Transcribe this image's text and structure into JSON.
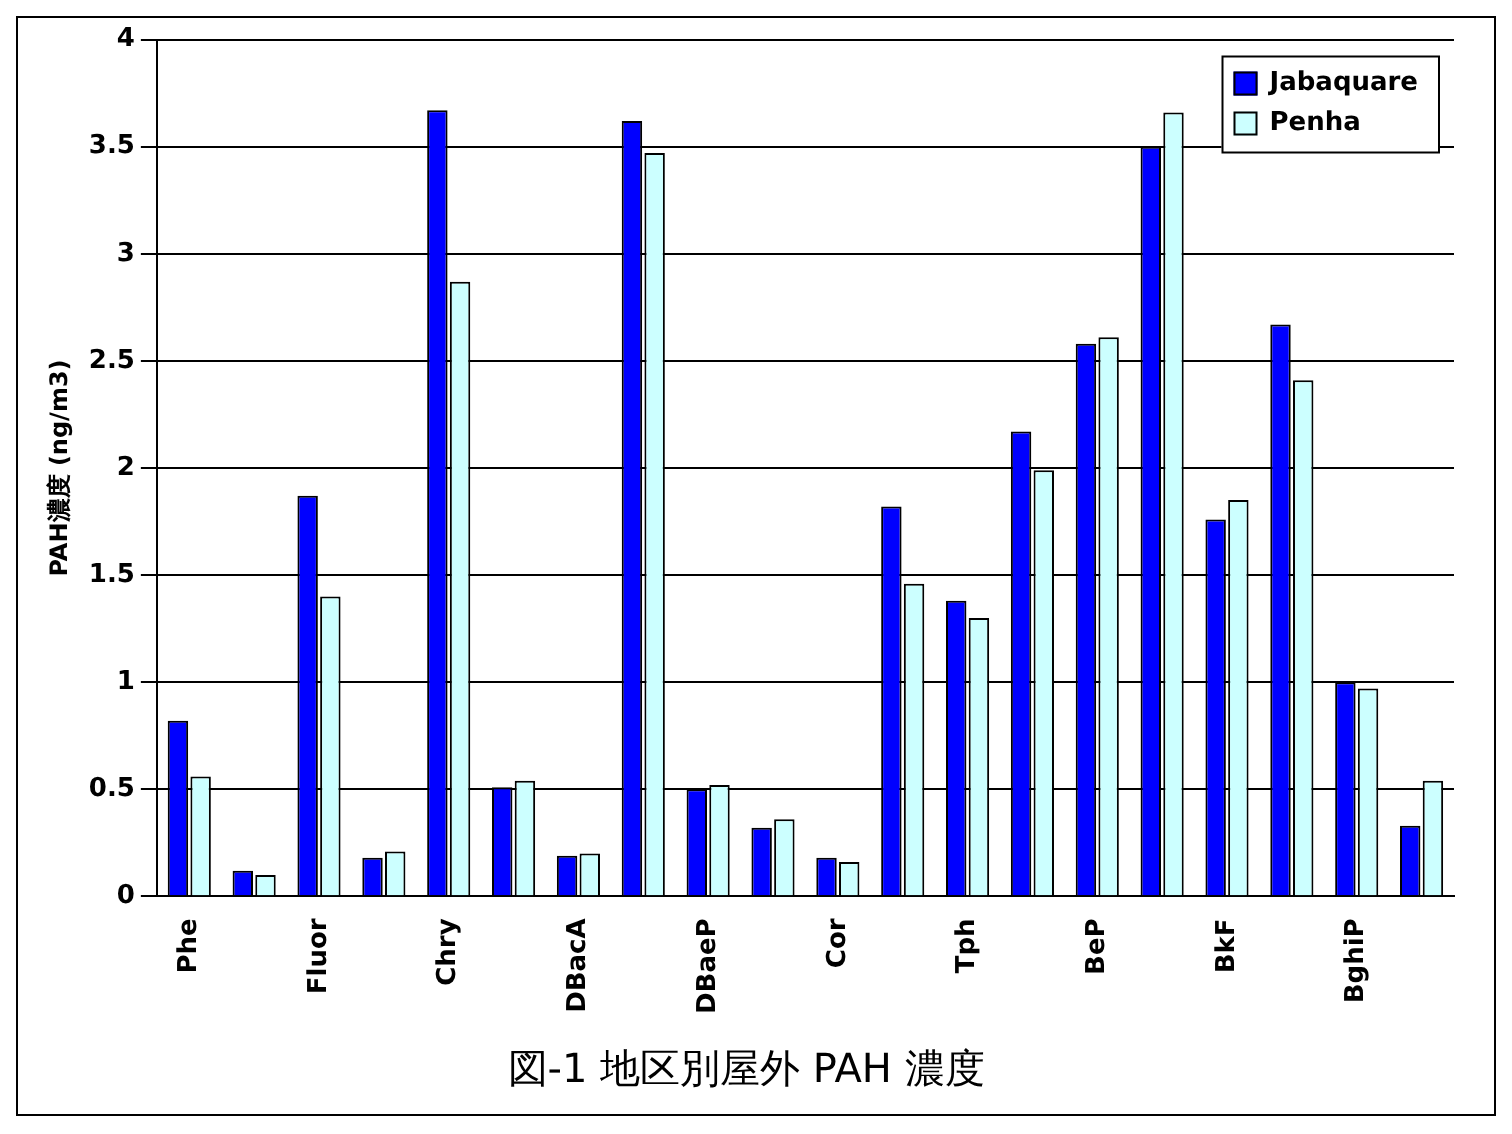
{
  "chart_data": {
    "type": "bar",
    "title": "図-1 地区別屋外 PAH 濃度",
    "ylabel": "PAH濃度 (ng/m3)",
    "categories": [
      "Phe",
      null,
      "Fluor",
      null,
      "Chry",
      null,
      "DBacA",
      null,
      "DBaeP",
      null,
      "Cor",
      null,
      "Tph",
      null,
      "BeP",
      null,
      "BkF",
      null,
      "BghiP",
      null
    ],
    "series": [
      {
        "name": "Jabaquare",
        "color": "#0000ff",
        "values": [
          0.82,
          0.12,
          1.87,
          0.18,
          3.67,
          0.51,
          0.19,
          3.62,
          0.5,
          0.32,
          0.18,
          1.82,
          1.38,
          2.17,
          2.58,
          3.5,
          1.76,
          2.67,
          1,
          0.33
        ]
      },
      {
        "name": "Penha",
        "color": "#ccffff",
        "values": [
          0.56,
          0.1,
          1.4,
          0.21,
          2.87,
          0.54,
          0.2,
          3.47,
          0.52,
          0.36,
          0.16,
          1.46,
          1.3,
          1.99,
          2.61,
          3.66,
          1.85,
          2.41,
          0.97,
          0.54
        ]
      }
    ],
    "ylim": [
      0,
      4
    ],
    "yticks": [
      0,
      0.5,
      1,
      1.5,
      2,
      2.5,
      3,
      3.5,
      4
    ],
    "grid": "y",
    "legend": "top right"
  }
}
